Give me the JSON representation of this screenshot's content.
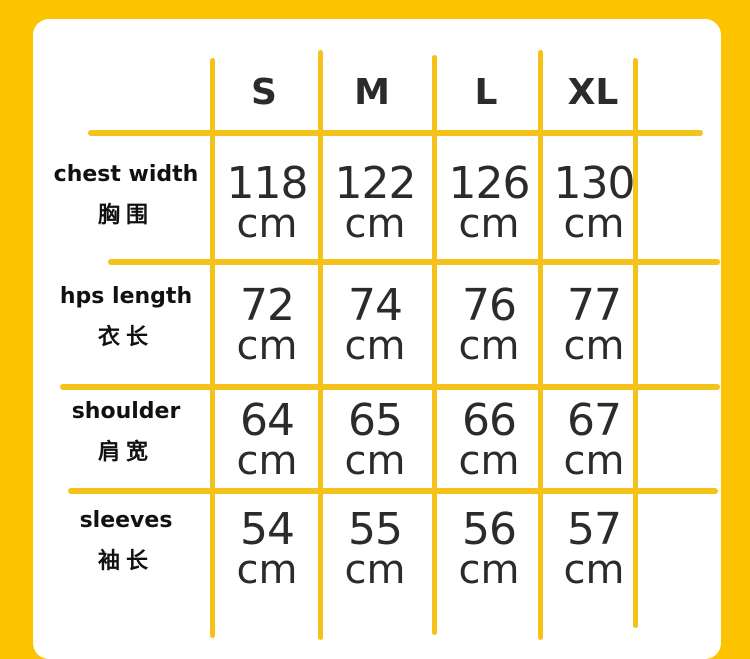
{
  "accent_color": "#fbc300",
  "line_color": "#f5c219",
  "sizes": [
    "S",
    "M",
    "L",
    "XL"
  ],
  "rows": [
    {
      "label": "chest width",
      "label_zh": "胸围",
      "values": [
        "118",
        "122",
        "126",
        "130"
      ],
      "unit": "cm"
    },
    {
      "label": "hps length",
      "label_zh": "衣长",
      "values": [
        "72",
        "74",
        "76",
        "77"
      ],
      "unit": "cm"
    },
    {
      "label": "shoulder",
      "label_zh": "肩宽",
      "values": [
        "64",
        "65",
        "66",
        "67"
      ],
      "unit": "cm"
    },
    {
      "label": "sleeves",
      "label_zh": "袖长",
      "values": [
        "54",
        "55",
        "56",
        "57"
      ],
      "unit": "cm"
    }
  ]
}
